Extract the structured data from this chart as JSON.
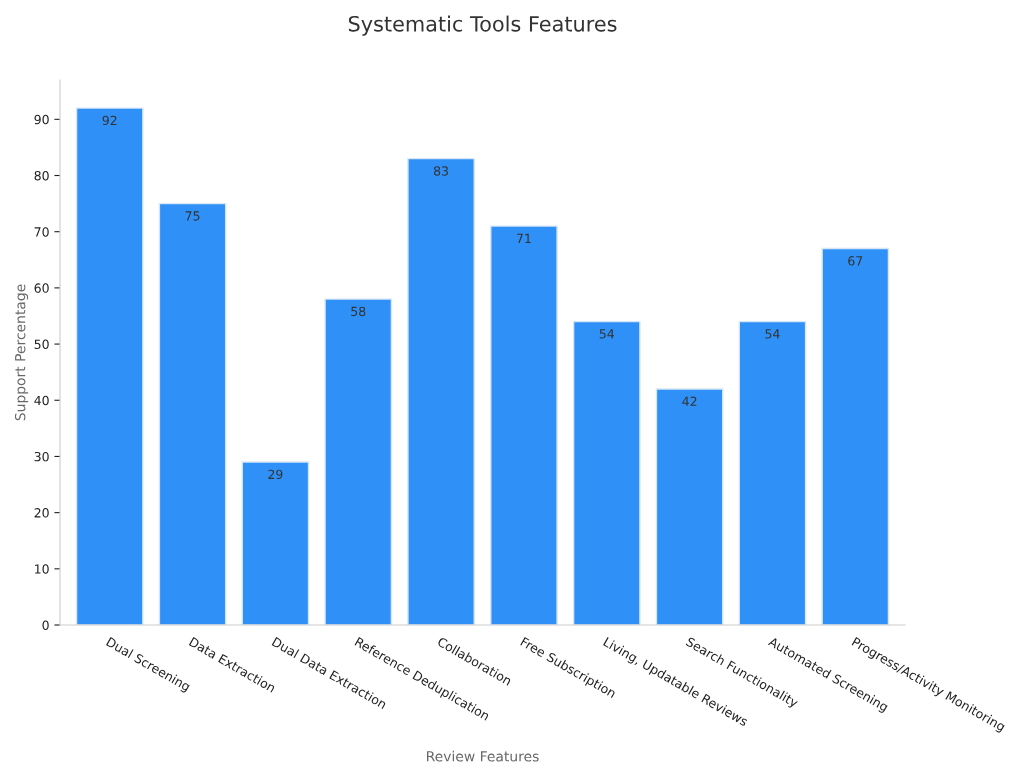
{
  "chart_data": {
    "type": "bar",
    "title": "Systematic Tools Features",
    "xlabel": "Review Features",
    "ylabel": "Support Percentage",
    "categories": [
      "Dual Screening",
      "Data Extraction",
      "Dual Data Extraction",
      "Reference Deduplication",
      "Collaboration",
      "Free Subscription",
      "Living, Updatable Reviews",
      "Search Functionality",
      "Automated Screening",
      "Progress/Activity Monitoring"
    ],
    "values": [
      92,
      75,
      29,
      58,
      83,
      71,
      54,
      42,
      54,
      67
    ],
    "color": "#2f91f7",
    "ylim": [
      0,
      97
    ],
    "yticks": [
      0,
      10,
      20,
      30,
      40,
      50,
      60,
      70,
      80,
      90
    ],
    "data_labels": true,
    "grid": false,
    "legend": false
  }
}
